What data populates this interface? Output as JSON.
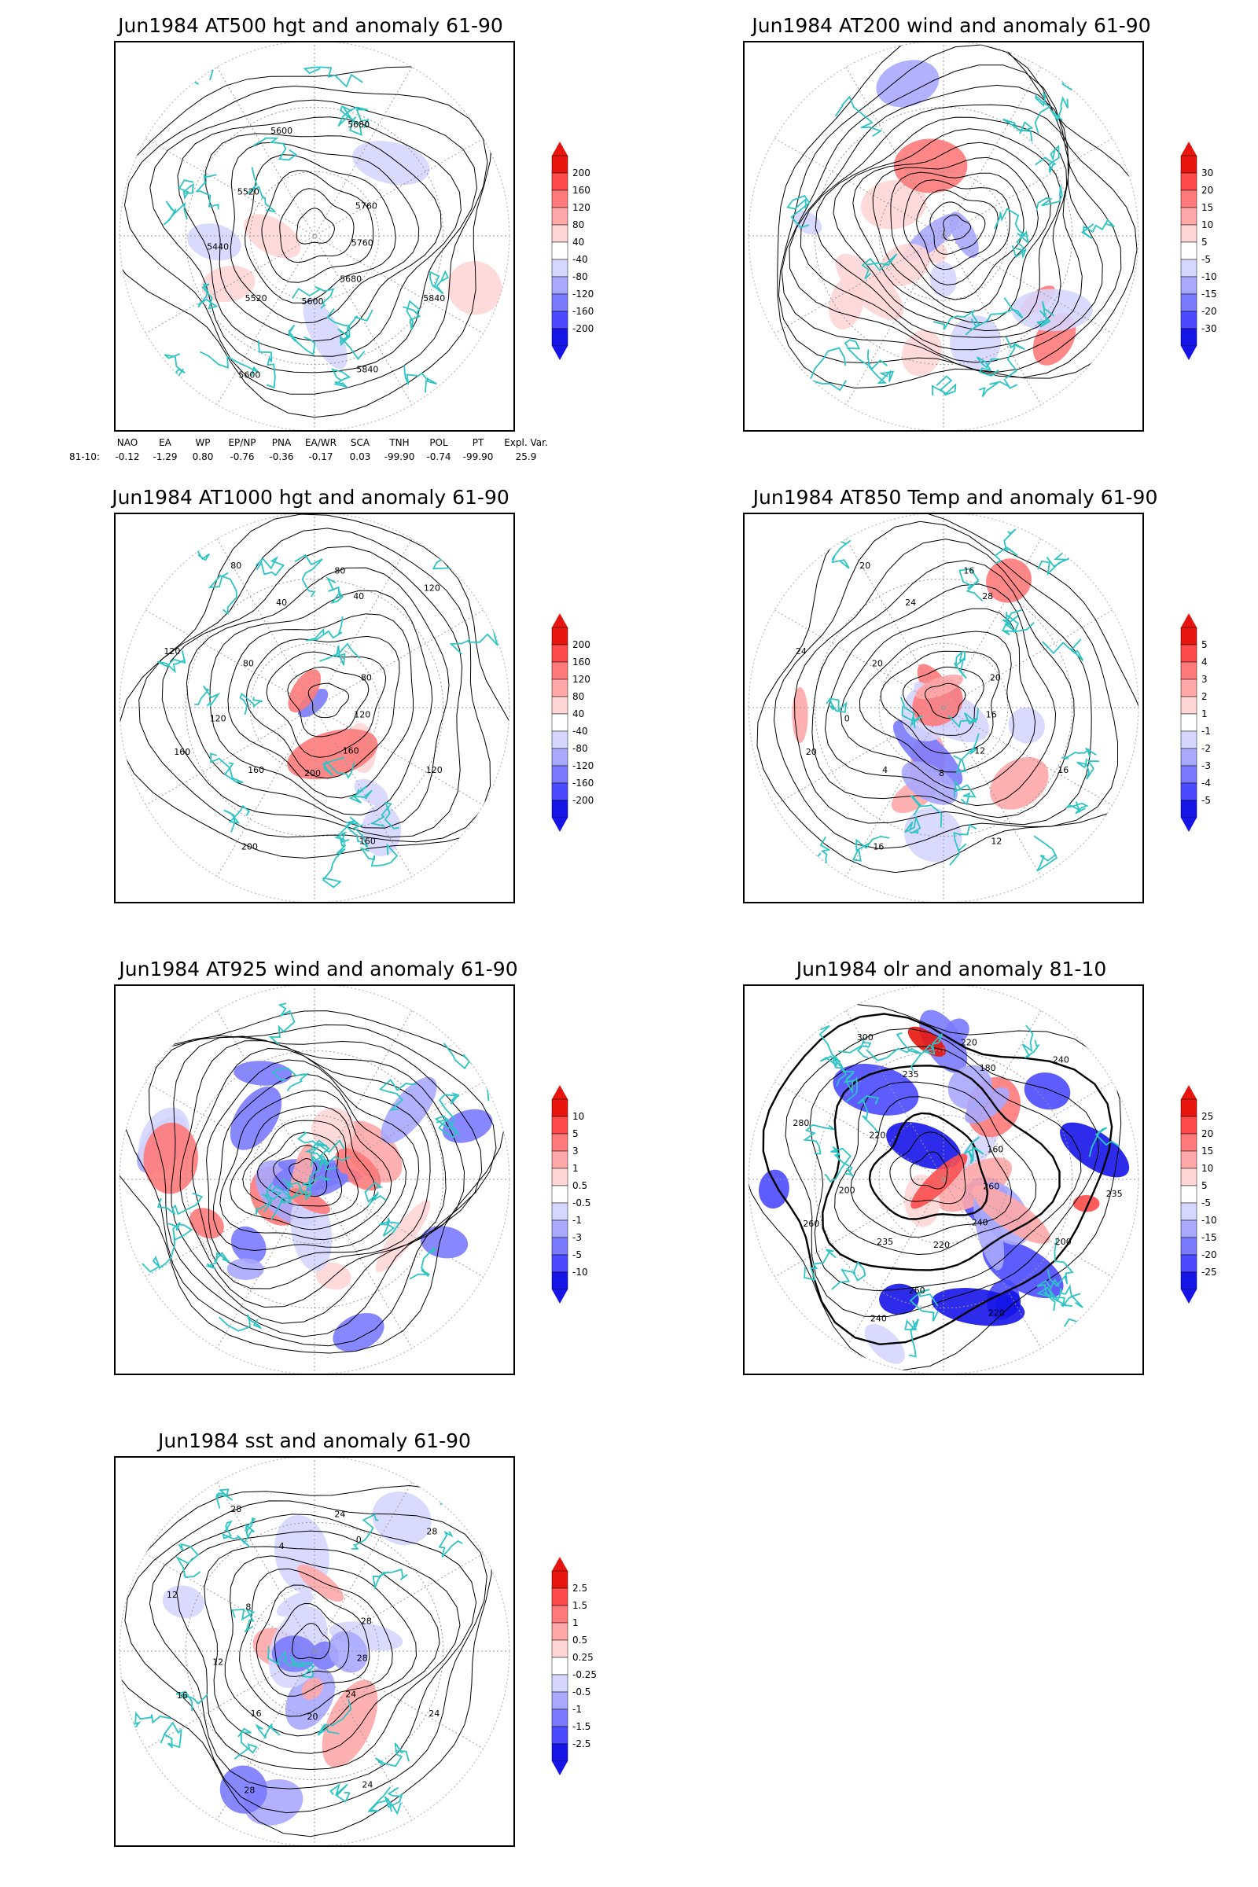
{
  "panels": [
    {
      "id": "p1",
      "title": "Jun1984 AT500 hgt and anomaly 61-90",
      "contour_labels": [
        "5760",
        "5680",
        "5600",
        "5520",
        "5440",
        "5520",
        "5600",
        "5680",
        "5760",
        "5840",
        "5840",
        "5600"
      ],
      "colorbar": [
        "200",
        "160",
        "120",
        "80",
        "40",
        "-40",
        "-80",
        "-120",
        "-160",
        "-200"
      ]
    },
    {
      "id": "p2",
      "title": "Jun1984 AT200 wind and anomaly 61-90",
      "contour_labels": [],
      "colorbar": [
        "30",
        "20",
        "15",
        "10",
        "5",
        "-5",
        "-10",
        "-15",
        "-20",
        "-30"
      ]
    },
    {
      "id": "p3",
      "title": "Jun1984 AT1000 hgt and anomaly 61-90",
      "contour_labels": [
        "120",
        "160",
        "200",
        "160",
        "120",
        "80",
        "40",
        "40",
        "80",
        "120",
        "160",
        "200",
        "160",
        "120",
        "80",
        "80",
        "120"
      ],
      "colorbar": [
        "200",
        "160",
        "120",
        "80",
        "40",
        "-40",
        "-80",
        "-120",
        "-160",
        "-200"
      ]
    },
    {
      "id": "p4",
      "title": "Jun1984 AT850 Temp and anomaly 61-90",
      "contour_labels": [
        "16",
        "12",
        "8",
        "4",
        "0",
        "20",
        "24",
        "28",
        "20",
        "16",
        "12",
        "16",
        "20",
        "24",
        "20",
        "16"
      ],
      "colorbar": [
        "5",
        "4",
        "3",
        "2",
        "1",
        "-1",
        "-2",
        "-3",
        "-4",
        "-5"
      ]
    },
    {
      "id": "p5",
      "title": "Jun1984 AT925 wind and anomaly 61-90",
      "contour_labels": [],
      "colorbar": [
        "10",
        "5",
        "3",
        "1",
        "0.5",
        "-0.5",
        "-1",
        "-3",
        "-5",
        "-10"
      ]
    },
    {
      "id": "p6",
      "title": "Jun1984 olr and anomaly 81-10",
      "contour_labels": [
        "260",
        "240",
        "220",
        "235",
        "200",
        "220",
        "235",
        "180",
        "160",
        "200",
        "220",
        "240",
        "260",
        "280",
        "300",
        "220",
        "240",
        "235",
        "260"
      ],
      "colorbar": [
        "25",
        "20",
        "15",
        "10",
        "5",
        "-5",
        "-10",
        "-15",
        "-20",
        "-25"
      ]
    },
    {
      "id": "p7",
      "title": "Jun1984 sst and anomaly 61-90",
      "contour_labels": [
        "28",
        "24",
        "20",
        "16",
        "12",
        "8",
        "4",
        "0",
        "28",
        "24",
        "24",
        "28",
        "16",
        "12",
        "28",
        "24",
        "28"
      ],
      "colorbar": [
        "2.5",
        "1.5",
        "1",
        "0.5",
        "0.25",
        "-0.25",
        "-0.5",
        "-1",
        "-1.5",
        "-2.5"
      ]
    }
  ],
  "teleconnection": {
    "headers": [
      "NAO",
      "EA",
      "WP",
      "EP/NP",
      "PNA",
      "EA/WR",
      "SCA",
      "TNH",
      "POL",
      "PT",
      "Expl. Var."
    ],
    "row_label": "81-10:",
    "values": [
      "-0.12",
      "-1.29",
      "0.80",
      "-0.76",
      "-0.36",
      "-0.17",
      "0.03",
      "-99.90",
      "-0.74",
      "-99.90",
      "25.9"
    ]
  },
  "colors": {
    "coastline": "#2ec4c4",
    "contour": "#000000",
    "positive": [
      "#ffd6d6",
      "#ffa8a8",
      "#ff7a7a",
      "#ff4a4a",
      "#e8150f"
    ],
    "negative": [
      "#d6d6ff",
      "#a8a8ff",
      "#7a7aff",
      "#4a4aff",
      "#1515e8"
    ]
  }
}
